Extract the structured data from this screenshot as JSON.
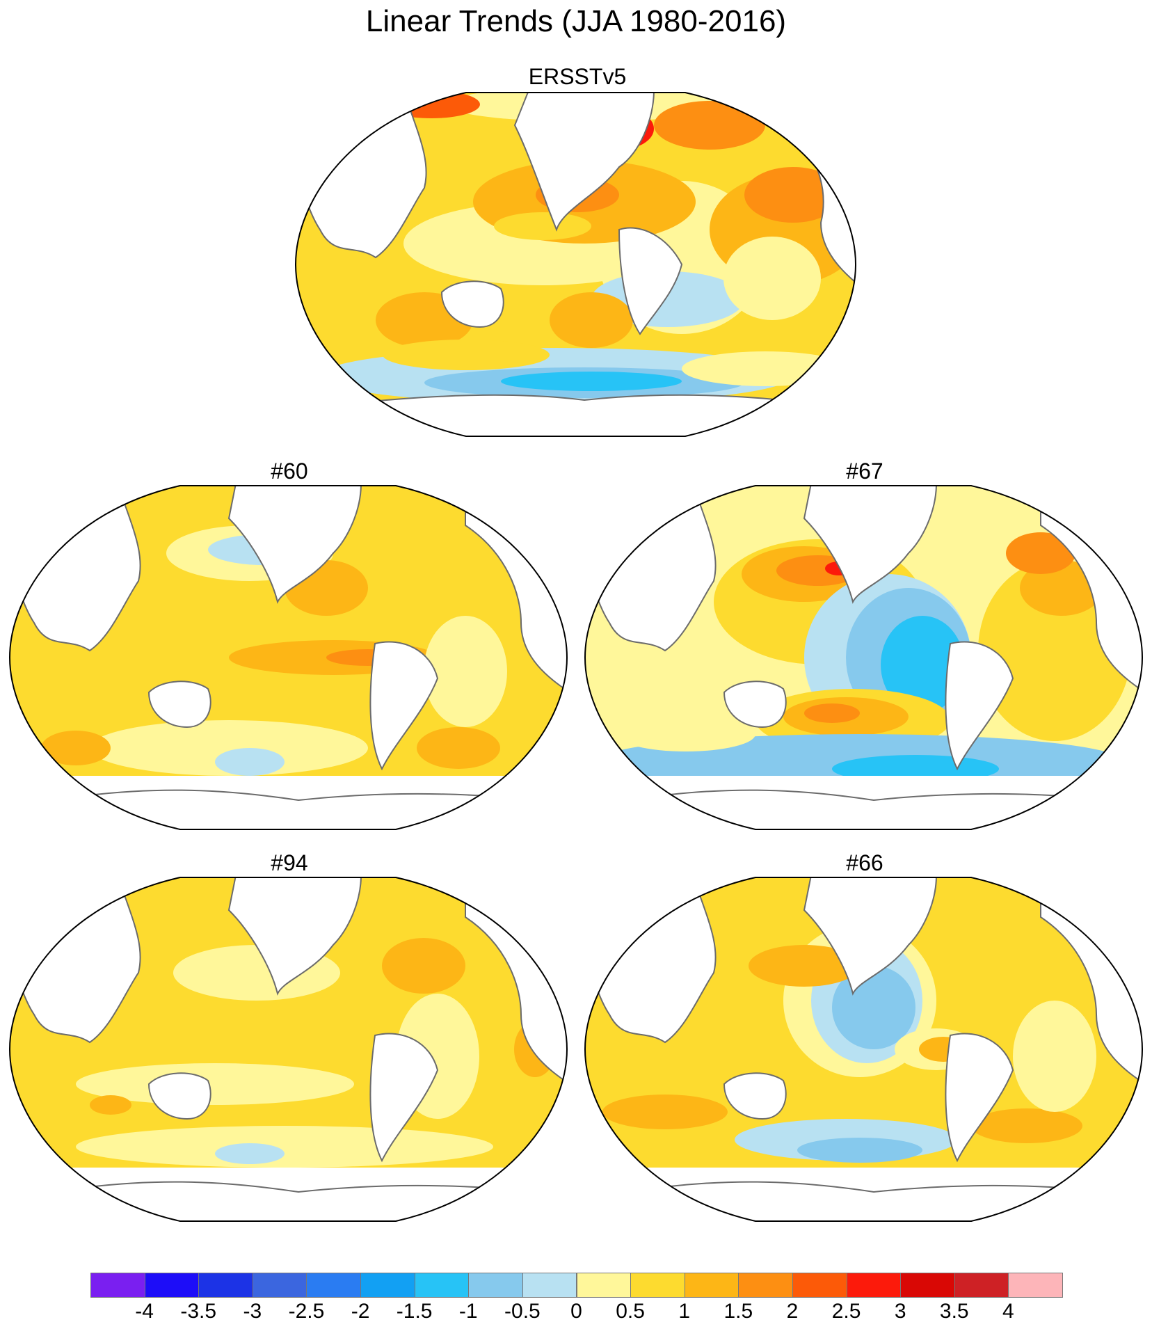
{
  "title": "Linear Trends (JJA 1980-2016)",
  "panels": [
    {
      "label": "ERSSTv5"
    },
    {
      "label": "#60"
    },
    {
      "label": "#67"
    },
    {
      "label": "#94"
    },
    {
      "label": "#66"
    }
  ],
  "colorbar": {
    "labels": [
      "-4",
      "-3.5",
      "-3",
      "-2.5",
      "-2",
      "-1.5",
      "-1",
      "-0.5",
      "0",
      "0.5",
      "1",
      "1.5",
      "2",
      "2.5",
      "3",
      "3.5",
      "4"
    ],
    "colors": [
      "#7a1ff0",
      "#1d0df8",
      "#1c33e6",
      "#3b66df",
      "#2a7cf2",
      "#12a0f3",
      "#27c3f6",
      "#86c9ed",
      "#b8e1f2",
      "#fff79a",
      "#fddb2f",
      "#fdb616",
      "#fd8f12",
      "#fc5a08",
      "#fc1a0b",
      "#d90805",
      "#ce2125",
      "#fdb5b9"
    ]
  },
  "colors": {
    "land": "#ffffff",
    "coast": "#6b6b6b",
    "frame": "#000000"
  }
}
